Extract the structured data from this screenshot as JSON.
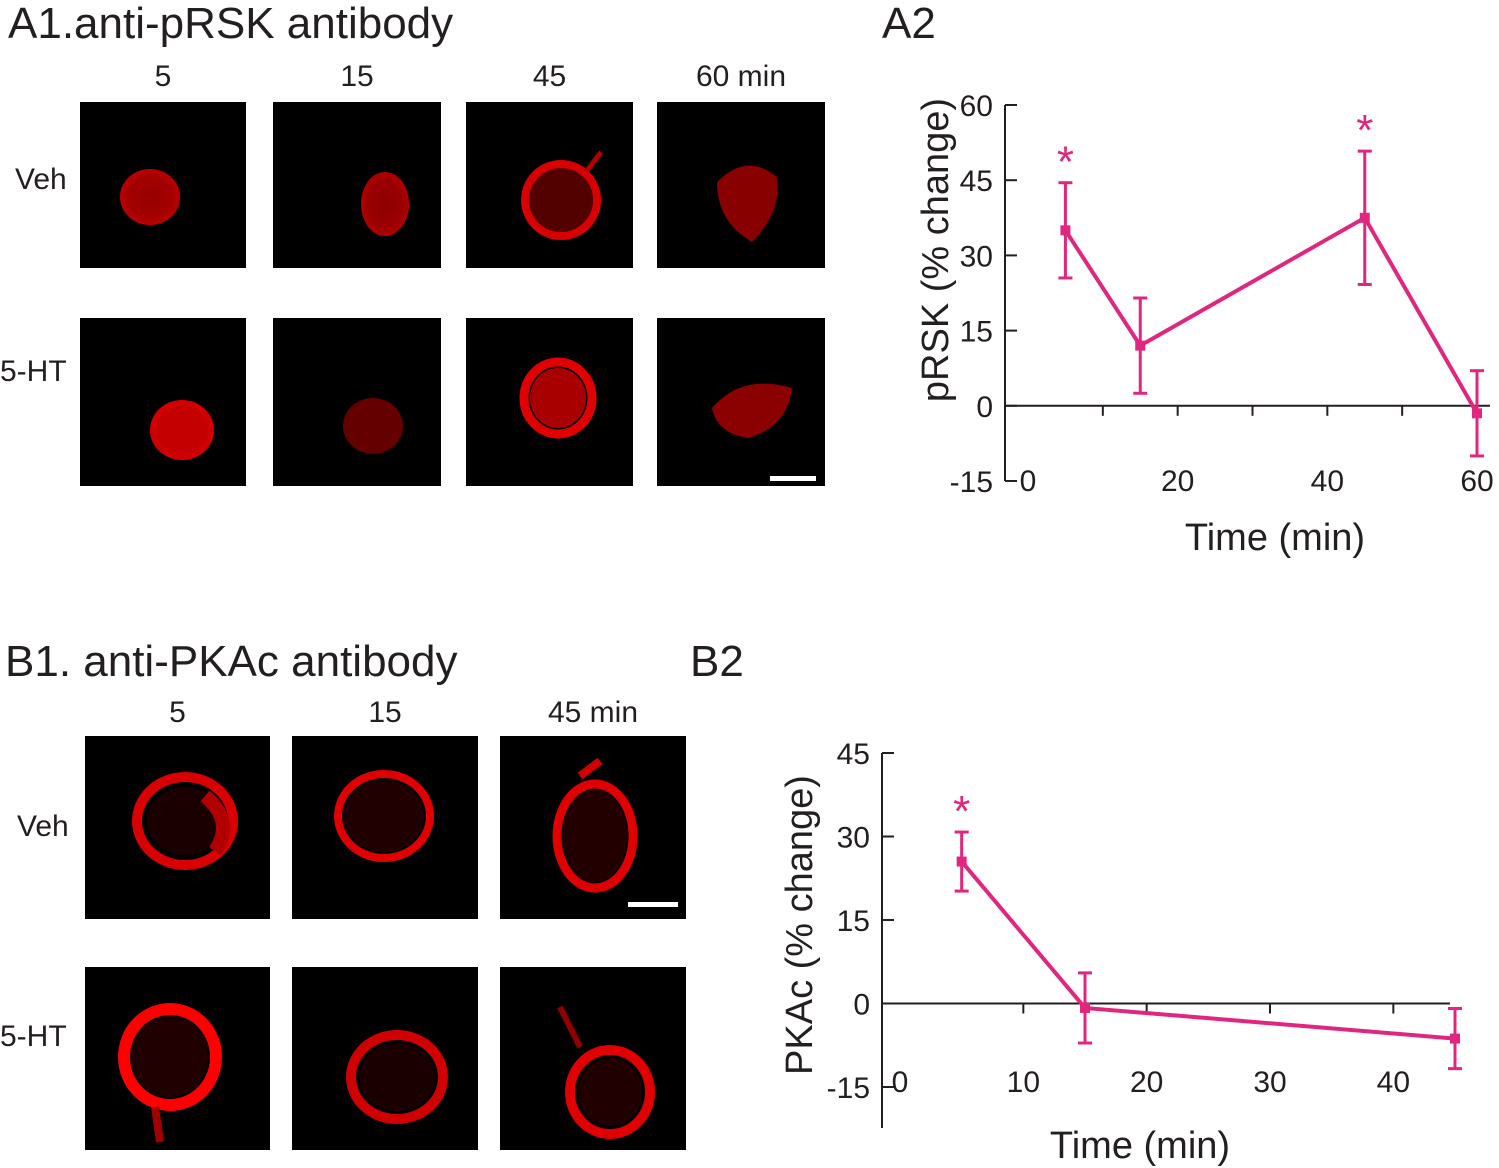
{
  "panelA1": {
    "title": "A1.anti-pRSK antibody",
    "time_labels": [
      "5",
      "15",
      "45",
      "60 min"
    ],
    "row_labels": [
      "Veh",
      "5-HT"
    ]
  },
  "panelB1": {
    "title": "B1. anti-PKAc antibody",
    "time_labels": [
      "5",
      "15",
      "45 min"
    ],
    "row_labels": [
      "Veh",
      "5-HT"
    ]
  },
  "colors": {
    "series": "#e0267f",
    "axis": "#231f20",
    "cell_stain": "#d90000",
    "background": "#000000"
  },
  "chart_data": [
    {
      "panel": "A2",
      "type": "line",
      "xlabel": "Time (min)",
      "ylabel": "pRSK (% change)",
      "xlim": [
        0,
        60
      ],
      "ylim": [
        -15,
        60
      ],
      "xticks": [
        0,
        20,
        40,
        60
      ],
      "yticks": [
        -15,
        0,
        15,
        30,
        45,
        60
      ],
      "series": [
        {
          "x": [
            5,
            15,
            45,
            60
          ],
          "values": [
            35,
            12,
            37.5,
            -1.5
          ],
          "error": [
            9.5,
            9.5,
            13.3,
            8.5
          ],
          "significant": [
            true,
            false,
            true,
            false
          ]
        }
      ],
      "annotation": "*"
    },
    {
      "panel": "B2",
      "type": "line",
      "xlabel": "Time (min)",
      "ylabel": "PKAc (% change)",
      "xlim": [
        0,
        45
      ],
      "ylim": [
        -15,
        45
      ],
      "xticks": [
        0,
        10,
        20,
        30,
        40
      ],
      "yticks": [
        -15,
        0,
        15,
        30,
        45
      ],
      "series": [
        {
          "x": [
            5,
            15,
            45
          ],
          "values": [
            25.5,
            -0.8,
            -6.3
          ],
          "error": [
            5.3,
            6.3,
            5.4
          ],
          "significant": [
            true,
            false,
            false
          ]
        }
      ],
      "annotation": "*"
    }
  ]
}
